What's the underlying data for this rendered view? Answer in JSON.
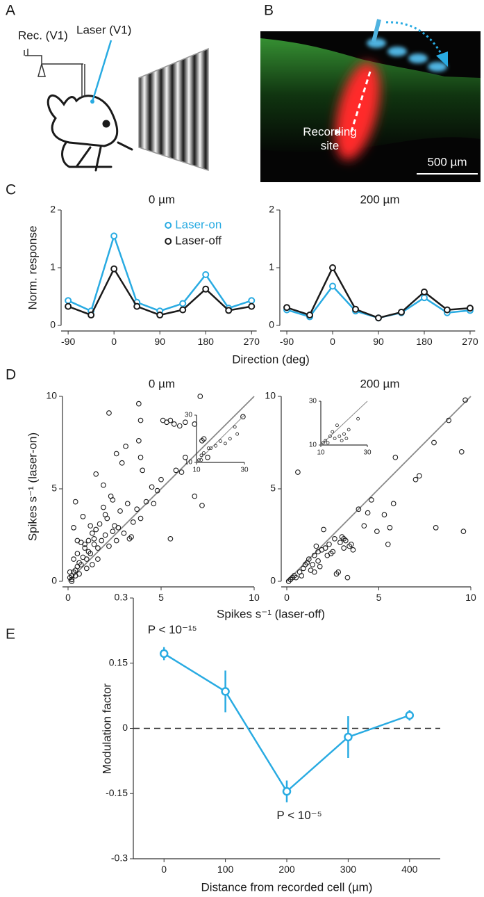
{
  "panel_labels": [
    "A",
    "B",
    "C",
    "D",
    "E"
  ],
  "panel_a": {
    "labels": [
      "Rec. (V1)",
      "Laser (V1)"
    ]
  },
  "panel_b": {
    "labels": [
      "Recording site",
      "500 µm"
    ]
  },
  "chart_data": [
    {
      "type": "line",
      "title": "0 µm",
      "ylabel": "Norm. response",
      "xlabel": "Direction (deg)",
      "x": [
        -90,
        -45,
        0,
        45,
        90,
        135,
        180,
        225,
        270
      ],
      "xlim": [
        -100,
        280
      ],
      "xticks": [
        -90,
        0,
        90,
        180,
        270
      ],
      "ylim": [
        0,
        2
      ],
      "yticks": [
        0,
        1,
        2
      ],
      "legend": "upper center",
      "series": [
        {
          "name": "Laser-on",
          "color": "#29abe2",
          "values": [
            0.43,
            0.25,
            1.55,
            0.4,
            0.25,
            0.38,
            0.88,
            0.3,
            0.43
          ]
        },
        {
          "name": "Laser-off",
          "color": "#1a1a1a",
          "values": [
            0.33,
            0.18,
            0.98,
            0.33,
            0.18,
            0.27,
            0.63,
            0.26,
            0.33
          ]
        }
      ]
    },
    {
      "type": "line",
      "title": "200 µm",
      "x": [
        -90,
        -45,
        0,
        45,
        90,
        135,
        180,
        225,
        270
      ],
      "xlim": [
        -100,
        280
      ],
      "xticks": [
        -90,
        0,
        90,
        180,
        270
      ],
      "ylim": [
        0,
        2
      ],
      "yticks": [
        0,
        1,
        2
      ],
      "series": [
        {
          "color": "#29abe2",
          "values": [
            0.27,
            0.15,
            0.68,
            0.25,
            0.13,
            0.22,
            0.48,
            0.22,
            0.26
          ]
        },
        {
          "color": "#1a1a1a",
          "values": [
            0.31,
            0.18,
            1.0,
            0.28,
            0.13,
            0.23,
            0.58,
            0.27,
            0.3
          ]
        }
      ]
    },
    {
      "type": "scatter",
      "title": "0 µm",
      "ylabel": "Spikes s⁻¹ (laser-on)",
      "xlabel": "Spikes s⁻¹ (laser-off)",
      "xlim": [
        0,
        10
      ],
      "ylim": [
        0,
        10
      ],
      "xticks": [
        0,
        5,
        10
      ],
      "yticks": [
        0,
        5,
        10
      ],
      "identity_line": true,
      "color": "#1a1a1a",
      "x": [
        0.1,
        0.2,
        0.3,
        0.4,
        0.5,
        0.6,
        0.2,
        0.8,
        0.7,
        1.0,
        1.2,
        1.1,
        0.9,
        1.3,
        1.4,
        1.5,
        1.6,
        1.8,
        1.7,
        2.0,
        2.2,
        2.1,
        2.3,
        1.9,
        2.5,
        2.6,
        2.8,
        3.0,
        3.2,
        3.3,
        3.5,
        3.7,
        3.9,
        4.0,
        4.2,
        4.5,
        0.3,
        0.4,
        0.8,
        1.5,
        1.9,
        2.2,
        2.6,
        2.9,
        3.1,
        3.8,
        3.9,
        3.8,
        3.9,
        5.1,
        5.3,
        5.5,
        5.7,
        6.0,
        6.3,
        6.8,
        6.3,
        7.2,
        7.1,
        7.5,
        6.8,
        7.3,
        7.2,
        9.4,
        5.5,
        4.6,
        5.0,
        1.0,
        1.3,
        0.6,
        0.5,
        0.9,
        1.6,
        2.4,
        2.7,
        3.4,
        4.8,
        5.8,
        6.1,
        1.2,
        0.1,
        0.3,
        0.7,
        1.1,
        1.4,
        2.0,
        2.4,
        0.5,
        0.4,
        0.2
      ],
      "y": [
        0.2,
        0.1,
        0.5,
        0.3,
        0.8,
        1.0,
        0.0,
        1.3,
        0.9,
        1.2,
        1.5,
        2.2,
        1.8,
        2.6,
        2.0,
        2.8,
        1.2,
        2.2,
        3.1,
        2.5,
        1.9,
        3.4,
        4.6,
        4.0,
        3.0,
        2.2,
        3.8,
        2.6,
        4.2,
        2.3,
        3.2,
        3.9,
        3.4,
        6.0,
        4.3,
        5.1,
        2.9,
        4.3,
        3.5,
        5.8,
        5.2,
        9.1,
        6.9,
        6.4,
        7.3,
        9.6,
        8.7,
        7.6,
        6.7,
        8.7,
        8.6,
        8.7,
        8.5,
        8.4,
        8.6,
        8.5,
        6.7,
        7.6,
        10.0,
        6.7,
        4.6,
        7.7,
        4.1,
        8.9,
        2.3,
        4.2,
        5.5,
        0.7,
        0.9,
        0.4,
        1.5,
        2.0,
        1.8,
        2.7,
        2.9,
        2.4,
        4.9,
        6.0,
        5.9,
        3.0,
        0.5,
        1.2,
        2.1,
        1.6,
        2.3,
        3.6,
        4.4,
        2.2,
        0.6,
        0.3
      ],
      "inset": {
        "xlim": [
          10,
          30
        ],
        "ylim": [
          10,
          30
        ],
        "xticks": [
          10,
          30
        ],
        "yticks": [
          10,
          30
        ],
        "x": [
          11,
          12,
          13,
          15,
          16,
          20,
          22,
          24,
          26,
          12,
          18,
          27
        ],
        "y": [
          11,
          13,
          14,
          16,
          16,
          19,
          18,
          20,
          25,
          11,
          17,
          22
        ]
      }
    },
    {
      "type": "scatter",
      "title": "200 µm",
      "xlim": [
        0,
        10
      ],
      "ylim": [
        0,
        10
      ],
      "xticks": [
        0,
        5,
        10
      ],
      "yticks": [
        0,
        5,
        10
      ],
      "identity_line": true,
      "color": "#1a1a1a",
      "x": [
        0.1,
        0.2,
        0.4,
        0.5,
        0.7,
        0.8,
        0.6,
        1.0,
        1.2,
        1.3,
        1.4,
        1.5,
        1.6,
        1.7,
        1.8,
        1.9,
        2.0,
        2.2,
        2.3,
        2.5,
        2.6,
        2.7,
        2.8,
        2.9,
        3.0,
        3.1,
        3.2,
        3.3,
        3.4,
        3.6,
        3.1,
        3.9,
        4.2,
        4.4,
        4.6,
        4.9,
        5.3,
        5.5,
        5.6,
        5.8,
        5.9,
        7.0,
        7.2,
        8.0,
        8.1,
        8.8,
        9.5,
        9.7,
        9.6,
        0.9,
        1.1,
        2.4,
        3.5,
        2.1,
        1.5,
        0.3,
        1.7
      ],
      "y": [
        0.0,
        0.1,
        0.3,
        0.2,
        0.5,
        0.3,
        5.9,
        0.9,
        1.2,
        0.6,
        0.9,
        1.4,
        1.9,
        1.6,
        0.8,
        1.7,
        2.8,
        1.4,
        2.0,
        1.6,
        2.3,
        0.4,
        0.5,
        2.1,
        2.4,
        1.8,
        2.2,
        0.2,
        1.9,
        1.7,
        2.3,
        3.9,
        3.0,
        3.7,
        4.4,
        2.7,
        3.6,
        2.0,
        2.9,
        4.2,
        6.7,
        5.5,
        5.7,
        7.5,
        2.9,
        8.7,
        7.0,
        9.8,
        2.7,
        0.7,
        1.0,
        1.5,
        2.0,
        1.8,
        0.5,
        0.2,
        1.1
      ],
      "inset": {
        "xlim": [
          10,
          30
        ],
        "ylim": [
          10,
          30
        ],
        "xticks": [
          10,
          30
        ],
        "yticks": [
          10,
          30
        ],
        "x": [
          11,
          12,
          13,
          14,
          15,
          16,
          18,
          19,
          20,
          21,
          26,
          17,
          22
        ],
        "y": [
          11,
          12,
          11,
          14,
          16,
          13,
          14,
          12,
          15,
          13,
          22,
          19,
          17
        ]
      }
    },
    {
      "type": "errorbar",
      "ylabel": "Modulation factor",
      "xlabel": "Distance from recorded cell (µm)",
      "x": [
        0,
        100,
        200,
        300,
        400
      ],
      "values": [
        0.172,
        0.085,
        -0.145,
        -0.02,
        0.03
      ],
      "errors": [
        0.015,
        0.048,
        0.025,
        0.048,
        0.012
      ],
      "color": "#29abe2",
      "xlim": [
        -50,
        450
      ],
      "ylim": [
        -0.3,
        0.3
      ],
      "xticks": [
        0,
        100,
        200,
        300,
        400
      ],
      "yticks": [
        -0.3,
        -0.15,
        0,
        0.15,
        0.3
      ],
      "reference_line": 0,
      "annotations": [
        "P < 10⁻¹⁵",
        "P < 10⁻⁵"
      ]
    }
  ]
}
